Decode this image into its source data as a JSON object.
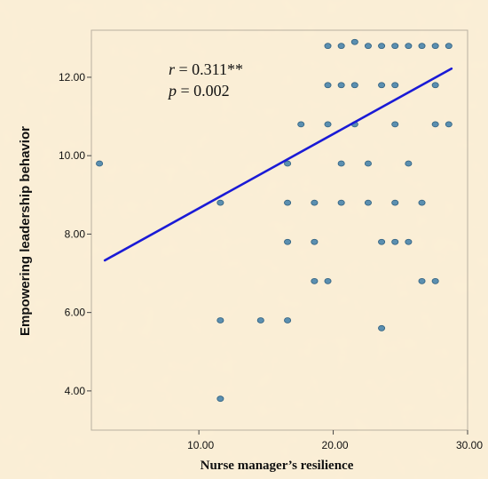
{
  "chart_data": {
    "type": "scatter",
    "title": "",
    "xlabel": "Nurse manager’s resilience",
    "ylabel": "Empowering leadership behavior",
    "xlim": [
      2,
      30
    ],
    "ylim": [
      3,
      13.2
    ],
    "x_ticks": [
      10,
      20,
      30
    ],
    "x_tick_labels": [
      "10.00",
      "20.00",
      "30.00"
    ],
    "y_ticks": [
      4,
      6,
      8,
      10,
      12
    ],
    "y_tick_labels": [
      "4.00",
      "6.00",
      "8.00",
      "10.00",
      "12.00"
    ],
    "grid": false,
    "legend": "none",
    "annotations": [
      {
        "var": "r",
        "text": " = 0.311**"
      },
      {
        "var": "p",
        "text": " = 0.002"
      }
    ],
    "points": [
      {
        "x": 2.6,
        "y": 9.8
      },
      {
        "x": 11.6,
        "y": 8.8
      },
      {
        "x": 11.6,
        "y": 5.8
      },
      {
        "x": 11.6,
        "y": 3.8
      },
      {
        "x": 14.6,
        "y": 5.8
      },
      {
        "x": 16.6,
        "y": 9.8
      },
      {
        "x": 16.6,
        "y": 8.8
      },
      {
        "x": 16.6,
        "y": 7.8
      },
      {
        "x": 16.6,
        "y": 5.8
      },
      {
        "x": 17.6,
        "y": 10.8
      },
      {
        "x": 18.6,
        "y": 8.8
      },
      {
        "x": 18.6,
        "y": 7.8
      },
      {
        "x": 18.6,
        "y": 6.8
      },
      {
        "x": 19.6,
        "y": 12.8
      },
      {
        "x": 19.6,
        "y": 11.8
      },
      {
        "x": 19.6,
        "y": 10.8
      },
      {
        "x": 19.6,
        "y": 6.8
      },
      {
        "x": 20.6,
        "y": 12.8
      },
      {
        "x": 20.6,
        "y": 11.8
      },
      {
        "x": 20.6,
        "y": 9.8
      },
      {
        "x": 20.6,
        "y": 8.8
      },
      {
        "x": 21.6,
        "y": 12.9
      },
      {
        "x": 21.6,
        "y": 11.8
      },
      {
        "x": 21.6,
        "y": 10.8
      },
      {
        "x": 22.6,
        "y": 12.8
      },
      {
        "x": 22.6,
        "y": 9.8
      },
      {
        "x": 22.6,
        "y": 8.8
      },
      {
        "x": 23.6,
        "y": 12.8
      },
      {
        "x": 23.6,
        "y": 11.8
      },
      {
        "x": 23.6,
        "y": 7.8
      },
      {
        "x": 23.6,
        "y": 5.6
      },
      {
        "x": 24.6,
        "y": 12.8
      },
      {
        "x": 24.6,
        "y": 11.8
      },
      {
        "x": 24.6,
        "y": 10.8
      },
      {
        "x": 24.6,
        "y": 8.8
      },
      {
        "x": 24.6,
        "y": 7.8
      },
      {
        "x": 25.6,
        "y": 12.8
      },
      {
        "x": 25.6,
        "y": 9.8
      },
      {
        "x": 25.6,
        "y": 7.8
      },
      {
        "x": 26.6,
        "y": 12.8
      },
      {
        "x": 26.6,
        "y": 8.8
      },
      {
        "x": 26.6,
        "y": 6.8
      },
      {
        "x": 27.6,
        "y": 12.8
      },
      {
        "x": 27.6,
        "y": 11.8
      },
      {
        "x": 27.6,
        "y": 10.8
      },
      {
        "x": 27.6,
        "y": 6.8
      },
      {
        "x": 28.6,
        "y": 12.8
      },
      {
        "x": 28.6,
        "y": 10.8
      }
    ],
    "fit_line": {
      "x": [
        3,
        28.8
      ],
      "y": [
        7.33,
        12.22
      ]
    },
    "colors": {
      "background": "#fbefd6",
      "point_fill": "#5b8fb0",
      "point_stroke": "#2f5f7f",
      "fit_line": "#1a1ad6",
      "frame": "#b8b0a0"
    }
  }
}
